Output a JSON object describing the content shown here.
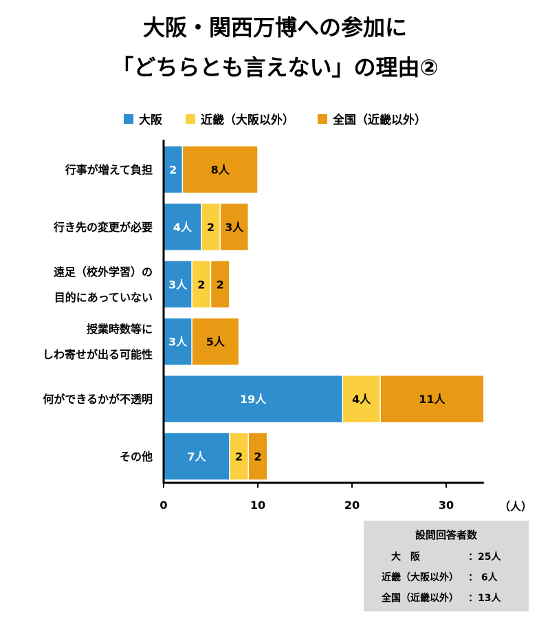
{
  "title_line1": "大阪・関西万博への参加に",
  "title_line2": "「どちらとも言えない」の理由②",
  "legend": [
    {
      "label": "大阪",
      "color": "#2e8ece"
    },
    {
      "label": "近畿（大阪以外）",
      "color": "#fbd03e"
    },
    {
      "label": "全国（近畿以外）",
      "color": "#e89a14"
    }
  ],
  "chart_data": {
    "type": "bar",
    "orientation": "horizontal",
    "stacked": true,
    "title": "大阪・関西万博への参加に「どちらとも言えない」の理由②",
    "categories": [
      [
        "行事が増えて負担"
      ],
      [
        "行き先の変更が必要"
      ],
      [
        "遠足（校外学習）の",
        "目的にあっていない"
      ],
      [
        "授業時数等に",
        "しわ寄せが出る可能性"
      ],
      [
        "何ができるかが不透明"
      ],
      [
        "その他"
      ]
    ],
    "series": [
      {
        "name": "大阪",
        "color": "#2e8ece",
        "values": [
          2,
          4,
          3,
          3,
          19,
          7
        ],
        "labels": [
          "2",
          "4人",
          "3人",
          "3人",
          "19人",
          "7人"
        ]
      },
      {
        "name": "近畿（大阪以外）",
        "color": "#fbd03e",
        "values": [
          0,
          2,
          2,
          0,
          4,
          2
        ],
        "labels": [
          "",
          "2",
          "2",
          "",
          "4人",
          "2"
        ]
      },
      {
        "name": "全国（近畿以外）",
        "color": "#e89a14",
        "values": [
          8,
          3,
          2,
          5,
          11,
          2
        ],
        "labels": [
          "8人",
          "3人",
          "2",
          "5人",
          "11人",
          "2"
        ]
      }
    ],
    "xlim": [
      0,
      34
    ],
    "xticks": [
      "0",
      "10",
      "20",
      "30"
    ],
    "xtick_values": [
      0,
      10,
      20,
      30
    ],
    "xunit": "（人）",
    "grid": false,
    "legend_position": "top"
  },
  "respondents": {
    "title": "設問回答者数",
    "rows": [
      {
        "label": "大　阪",
        "value": "：25人"
      },
      {
        "label": "近畿（大阪以外）",
        "value": "：  6人"
      },
      {
        "label": "全国（近畿以外）",
        "value": "：13人"
      }
    ]
  }
}
